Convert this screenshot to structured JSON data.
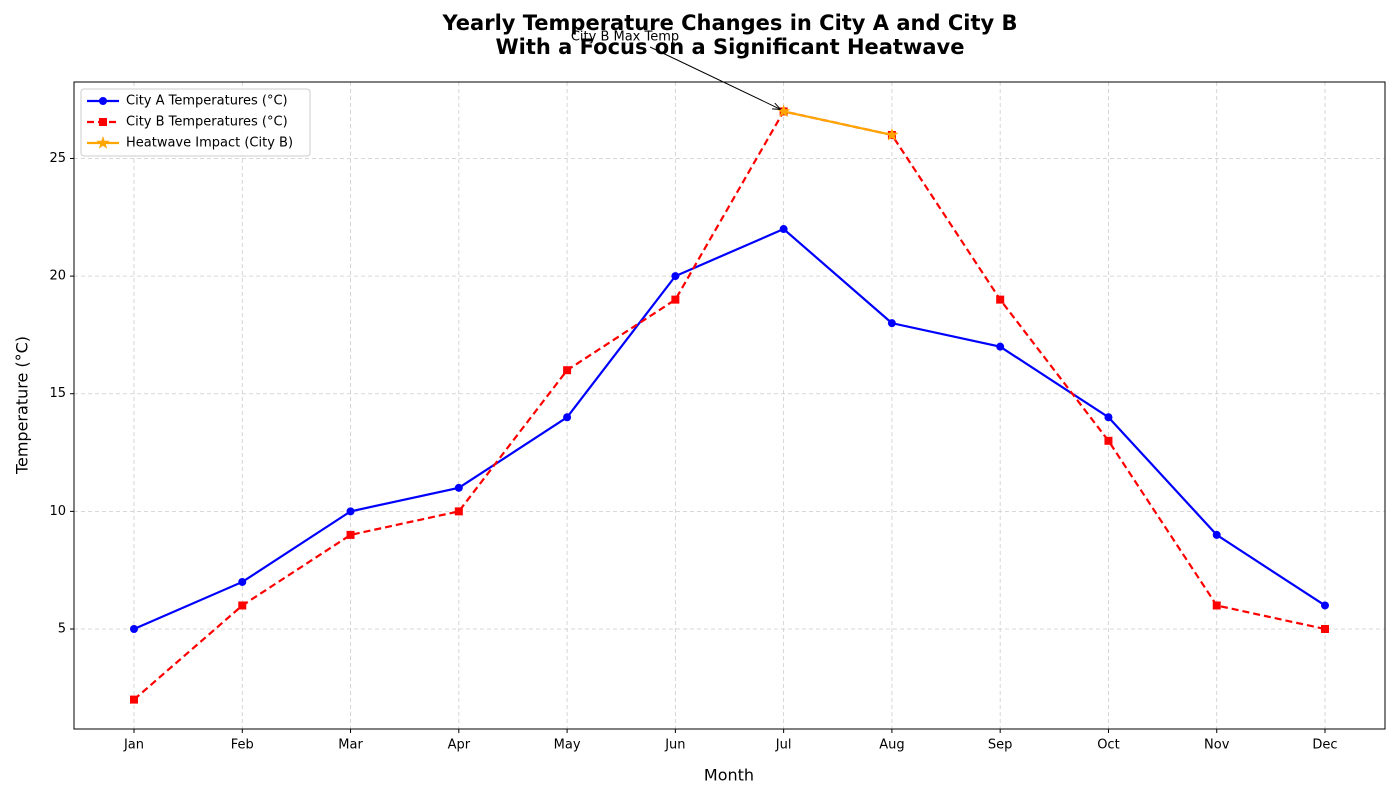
{
  "chart_data": {
    "type": "line",
    "title": "Yearly Temperature Changes in City A and City B\nWith a Focus on a Significant Heatwave",
    "xlabel": "Month",
    "ylabel": "Temperature (°C)",
    "categories": [
      "Jan",
      "Feb",
      "Mar",
      "Apr",
      "May",
      "Jun",
      "Jul",
      "Aug",
      "Sep",
      "Oct",
      "Nov",
      "Dec"
    ],
    "series": [
      {
        "name": "City A Temperatures (°C)",
        "color": "#0000ff",
        "marker": "circle",
        "dash": "solid",
        "values": [
          5,
          7,
          10,
          11,
          14,
          20,
          22,
          18,
          17,
          14,
          9,
          6
        ]
      },
      {
        "name": "City B Temperatures (°C)",
        "color": "#ff0000",
        "marker": "square",
        "dash": "dashed",
        "values": [
          2,
          6,
          9,
          10,
          16,
          19,
          27,
          26,
          19,
          13,
          6,
          5
        ]
      },
      {
        "name": "Heatwave Impact (City B)",
        "color": "#ffa500",
        "marker": "star",
        "dash": "solid",
        "values": [
          null,
          null,
          null,
          null,
          null,
          null,
          27,
          26,
          null,
          null,
          null,
          null
        ]
      }
    ],
    "annotation": {
      "text": "City B Max Temp",
      "series": 1,
      "index": 6
    },
    "ylim": [
      0.75,
      28.25
    ],
    "yticks": [
      5,
      10,
      15,
      20,
      25
    ],
    "grid": true,
    "legend": "upper left"
  }
}
